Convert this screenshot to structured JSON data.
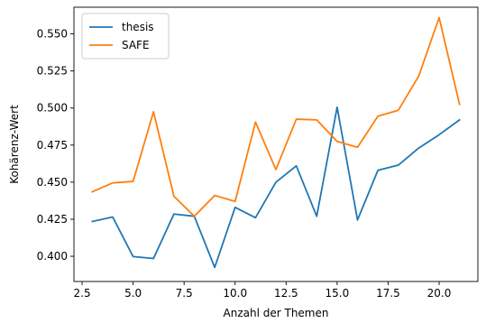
{
  "chart_data": {
    "type": "line",
    "title": "",
    "xlabel": "Anzahl der Themen",
    "ylabel": "Kohärenz-Wert",
    "xlim": [
      2.1,
      21.9
    ],
    "ylim": [
      0.383,
      0.568
    ],
    "xticks": [
      2.5,
      5.0,
      7.5,
      10.0,
      12.5,
      15.0,
      17.5,
      20.0
    ],
    "xtick_labels": [
      "2.5",
      "5.0",
      "7.5",
      "10.0",
      "12.5",
      "15.0",
      "17.5",
      "20.0"
    ],
    "yticks": [
      0.4,
      0.425,
      0.45,
      0.475,
      0.5,
      0.525,
      0.55
    ],
    "ytick_labels": [
      "0.400",
      "0.425",
      "0.450",
      "0.475",
      "0.500",
      "0.525",
      "0.550"
    ],
    "grid": false,
    "legend_position": "top-left",
    "x": [
      3,
      4,
      5,
      6,
      7,
      8,
      9,
      10,
      11,
      12,
      13,
      14,
      15,
      16,
      17,
      18,
      19,
      20,
      21
    ],
    "series": [
      {
        "name": "thesis",
        "color": "#1f77b4",
        "values": [
          0.4235,
          0.4265,
          0.3998,
          0.3985,
          0.4285,
          0.427,
          0.3925,
          0.433,
          0.426,
          0.45,
          0.461,
          0.427,
          0.5005,
          0.4245,
          0.458,
          0.4615,
          0.473,
          0.482,
          0.492
        ]
      },
      {
        "name": "SAFE",
        "color": "#ff7f0e",
        "values": [
          0.4435,
          0.4495,
          0.4505,
          0.4975,
          0.4405,
          0.427,
          0.441,
          0.437,
          0.4905,
          0.4585,
          0.4925,
          0.492,
          0.4775,
          0.4735,
          0.4945,
          0.4985,
          0.5215,
          0.561,
          0.5025
        ]
      }
    ]
  }
}
